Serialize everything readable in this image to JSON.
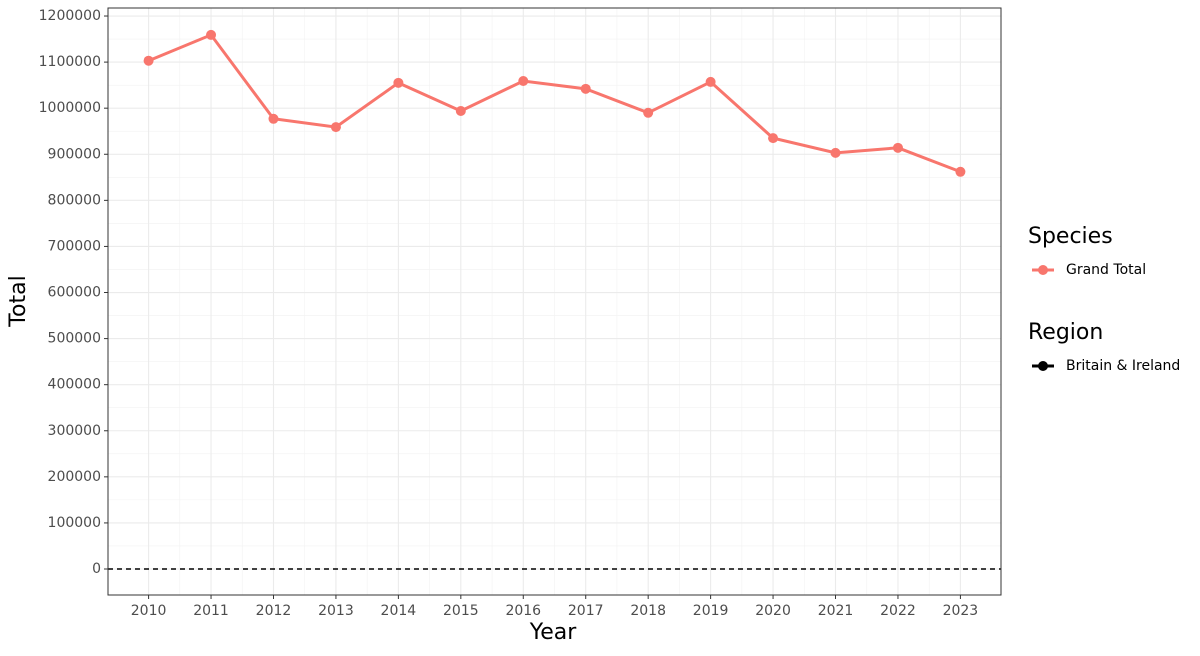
{
  "chart_data": {
    "type": "line",
    "x_label": "Year",
    "y_label": "Total",
    "x": [
      2010,
      2011,
      2012,
      2013,
      2014,
      2015,
      2016,
      2017,
      2018,
      2019,
      2020,
      2021,
      2022,
      2023
    ],
    "series": [
      {
        "name": "Grand Total",
        "legend_group": "Species",
        "color": "#f8766d",
        "values": [
          1103000,
          1159000,
          977000,
          959000,
          1055000,
          994000,
          1059000,
          1042000,
          990000,
          1057000,
          935000,
          903000,
          914000,
          862000
        ]
      }
    ],
    "reference_lines": [
      {
        "name": "Britain & Ireland",
        "legend_group": "Region",
        "y": 0,
        "color": "#000000",
        "dash": true
      }
    ],
    "xlim": [
      2009.35,
      2023.65
    ],
    "xticks": [
      2010,
      2011,
      2012,
      2013,
      2014,
      2015,
      2016,
      2017,
      2018,
      2019,
      2020,
      2021,
      2022,
      2023
    ],
    "ylim": [
      -56400,
      1217400
    ],
    "yticks": [
      0,
      100000,
      200000,
      300000,
      400000,
      500000,
      600000,
      700000,
      800000,
      900000,
      1000000,
      1100000,
      1200000
    ],
    "grid": true
  }
}
